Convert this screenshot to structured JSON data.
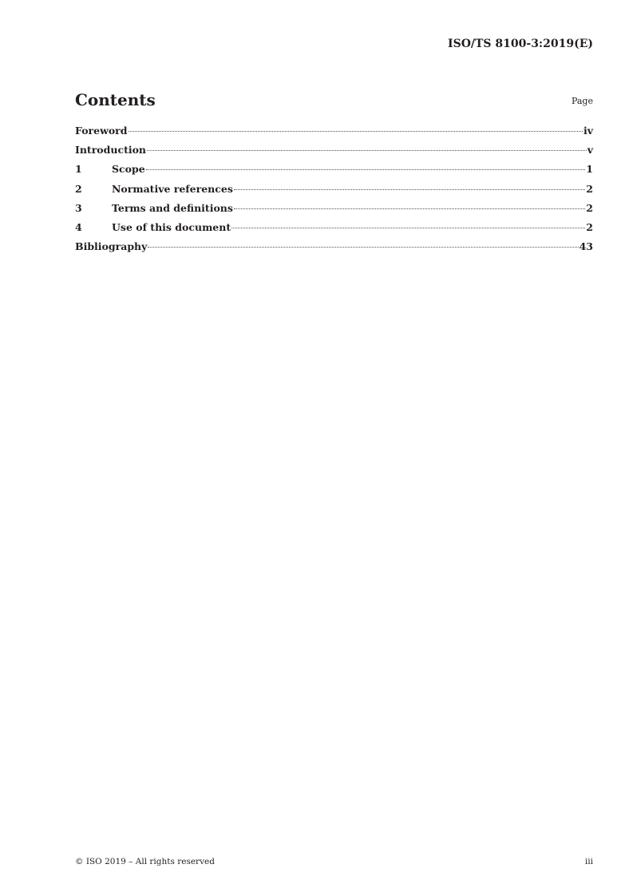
{
  "header": "ISO/TS 8100-3:2019(E)",
  "title": "Contents",
  "page_label": "Page",
  "toc": [
    {
      "num": "",
      "label": "Foreword",
      "page": "iv"
    },
    {
      "num": "",
      "label": "Introduction",
      "page": "v"
    },
    {
      "num": "1",
      "label": "Scope",
      "page": "1"
    },
    {
      "num": "2",
      "label": "Normative references",
      "page": "2"
    },
    {
      "num": "3",
      "label": "Terms and definitions",
      "page": "2"
    },
    {
      "num": "4",
      "label": "Use of this document",
      "page": "2"
    },
    {
      "num": "",
      "label": "Bibliography",
      "page": "43"
    }
  ],
  "footer": {
    "copyright": "© ISO 2019 – All rights reserved",
    "page": "iii"
  }
}
